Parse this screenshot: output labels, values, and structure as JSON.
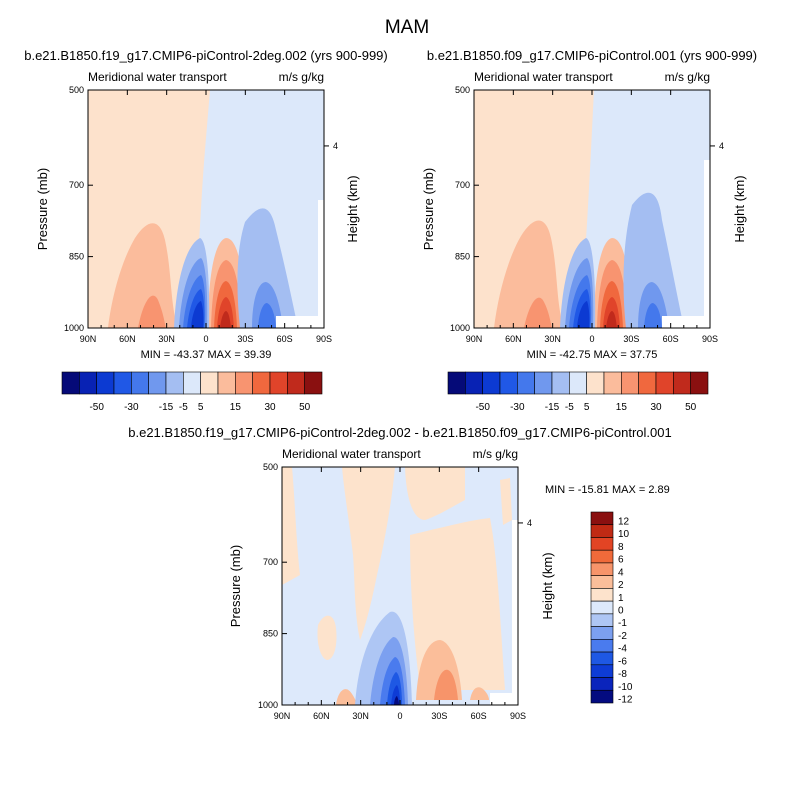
{
  "figure_title": "MAM",
  "palette_abs": [
    "#050a78",
    "#0822b4",
    "#0c3ad2",
    "#2058e6",
    "#4478ec",
    "#7098ee",
    "#a4bef2",
    "#dce8fa",
    "#fde2cc",
    "#fbbc9c",
    "#f89470",
    "#f0683e",
    "#e0442a",
    "#c02a1c",
    "#8a1010"
  ],
  "palette_diff": [
    "#040b80",
    "#0a24bc",
    "#0e3cd6",
    "#1e58e4",
    "#4a7bee",
    "#7ca0f0",
    "#aec6f4",
    "#dde9fb",
    "#fde3cc",
    "#fbbe9a",
    "#f7946a",
    "#f06a3a",
    "#e24424",
    "#c02a14",
    "#8a1010"
  ],
  "chart_data": [
    {
      "type": "heatmap",
      "id": "panel-1",
      "title": "b.e21.B1850.f19_g17.CMIP6-piControl-2deg.002 (yrs 900-999)",
      "left_label": "Meridional water transport",
      "right_label": "m/s g/kg",
      "ylabel": "Pressure (mb)",
      "y2label": "Height (km)",
      "x_ticks": [
        "90N",
        "60N",
        "30N",
        "0",
        "30S",
        "60S",
        "90S"
      ],
      "y_ticks": [
        "500",
        "700",
        "850",
        "1000"
      ],
      "y2_ticks": [
        "4"
      ],
      "xlim": [
        90,
        -90
      ],
      "ylim": [
        1000,
        500
      ],
      "stats": "MIN = -43.37  MAX =  39.39",
      "colorbar_labels": [
        "-50",
        "-30",
        "-15",
        "-5",
        "5",
        "15",
        "30",
        "50"
      ],
      "features": [
        {
          "lat": 10,
          "p": 975,
          "value": 39.39
        },
        {
          "lat": -5,
          "p": 975,
          "value": -43.37
        },
        {
          "lat": 50,
          "p": 900,
          "value": 8
        },
        {
          "lat": -45,
          "p": 900,
          "value": -20
        },
        {
          "lat": -25,
          "p": 800,
          "value": -5
        }
      ]
    },
    {
      "type": "heatmap",
      "id": "panel-2",
      "title": "b.e21.B1850.f09_g17.CMIP6-piControl.001 (yrs 900-999)",
      "left_label": "Meridional water transport",
      "right_label": "m/s g/kg",
      "ylabel": "Pressure (mb)",
      "y2label": "Height (km)",
      "x_ticks": [
        "90N",
        "60N",
        "30N",
        "0",
        "30S",
        "60S",
        "90S"
      ],
      "y_ticks": [
        "500",
        "700",
        "850",
        "1000"
      ],
      "y2_ticks": [
        "4"
      ],
      "xlim": [
        90,
        -90
      ],
      "ylim": [
        1000,
        500
      ],
      "stats": "MIN = -42.75  MAX =  37.75",
      "colorbar_labels": [
        "-50",
        "-30",
        "-15",
        "-5",
        "5",
        "15",
        "30",
        "50"
      ],
      "features": [
        {
          "lat": 10,
          "p": 975,
          "value": 37.75
        },
        {
          "lat": -5,
          "p": 975,
          "value": -42.75
        },
        {
          "lat": 50,
          "p": 900,
          "value": 8
        },
        {
          "lat": -45,
          "p": 900,
          "value": -20
        },
        {
          "lat": -25,
          "p": 800,
          "value": -5
        }
      ]
    },
    {
      "type": "heatmap",
      "id": "panel-diff",
      "title": "b.e21.B1850.f19_g17.CMIP6-piControl-2deg.002 - b.e21.B1850.f09_g17.CMIP6-piControl.001",
      "left_label": "Meridional water transport",
      "right_label": "m/s g/kg",
      "ylabel": "Pressure (mb)",
      "y2label": "Height (km)",
      "x_ticks": [
        "90N",
        "60N",
        "30N",
        "0",
        "30S",
        "60S",
        "90S"
      ],
      "y_ticks": [
        "500",
        "700",
        "850",
        "1000"
      ],
      "y2_ticks": [
        "4"
      ],
      "xlim": [
        90,
        -90
      ],
      "ylim": [
        1000,
        500
      ],
      "stats": "MIN = -15.81  MAX =   2.89",
      "colorbar_labels": [
        "12",
        "10",
        "8",
        "6",
        "4",
        "2",
        "1",
        "0",
        "-1",
        "-2",
        "-4",
        "-6",
        "-8",
        "-10",
        "-12"
      ],
      "features": [
        {
          "lat": 0,
          "p": 985,
          "value": -15.81
        },
        {
          "lat": -25,
          "p": 950,
          "value": 2.89
        },
        {
          "lat": 10,
          "p": 900,
          "value": -6
        },
        {
          "lat": 0,
          "p": 650,
          "value": -1
        }
      ]
    }
  ]
}
